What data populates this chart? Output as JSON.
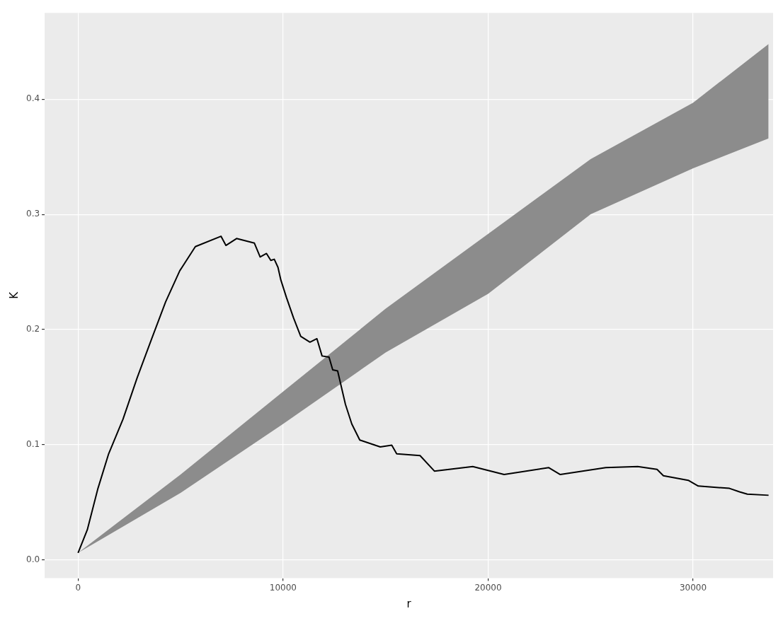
{
  "chart_data": {
    "type": "line",
    "xlabel": "r",
    "ylabel": "K",
    "xlim": [
      -1630,
      33900
    ],
    "ylim": [
      -0.016,
      0.475
    ],
    "xticks": [
      0,
      10000,
      20000,
      30000
    ],
    "yticks": [
      {
        "value": 0,
        "label": "0.0"
      },
      {
        "value": 0.1,
        "label": "0.1"
      },
      {
        "value": 0.2,
        "label": "0.2"
      },
      {
        "value": 0.3,
        "label": "0.3"
      },
      {
        "value": 0.4,
        "label": "0.4"
      }
    ],
    "grid": true,
    "legend": false,
    "marker": "none",
    "line_style": "solid",
    "series": [
      {
        "type": "area",
        "color": "#8c8c8c",
        "x": [
          0,
          5000,
          10000,
          15000,
          20000,
          25000,
          30000,
          33680
        ],
        "values": [
          null,
          null,
          null,
          null,
          null,
          null,
          null,
          null
        ],
        "lower": [
          0.006,
          0.058,
          0.118,
          0.18,
          0.231,
          0.3,
          0.34,
          0.366
        ],
        "upper": [
          0.006,
          0.074,
          0.146,
          0.218,
          0.283,
          0.348,
          0.397,
          0.448
        ]
      },
      {
        "color": "#000000",
        "x": [
          0,
          450,
          970,
          1490,
          2190,
          2880,
          3570,
          4270,
          4960,
          5720,
          6970,
          7210,
          7730,
          8600,
          8880,
          9190,
          9400,
          9570,
          9750,
          9890,
          10160,
          10510,
          10860,
          11310,
          11650,
          11900,
          12240,
          12420,
          12660,
          13040,
          13350,
          13740,
          14740,
          15300,
          15540,
          16680,
          17380,
          19250,
          20780,
          22960,
          23520,
          25740,
          27300,
          28240,
          28550,
          29760,
          30250,
          31770,
          32260,
          32640,
          33680
        ],
        "values": [
          0.006,
          0.026,
          0.062,
          0.092,
          0.122,
          0.158,
          0.191,
          0.224,
          0.251,
          0.272,
          0.281,
          0.273,
          0.279,
          0.275,
          0.263,
          0.266,
          0.26,
          0.261,
          0.254,
          0.243,
          0.228,
          0.21,
          0.194,
          0.189,
          0.192,
          0.177,
          0.176,
          0.165,
          0.164,
          0.135,
          0.118,
          0.104,
          0.098,
          0.0995,
          0.092,
          0.0905,
          0.077,
          0.081,
          0.074,
          0.08,
          0.074,
          0.08,
          0.081,
          0.0785,
          0.073,
          0.069,
          0.064,
          0.062,
          0.059,
          0.057,
          0.056
        ]
      }
    ]
  }
}
